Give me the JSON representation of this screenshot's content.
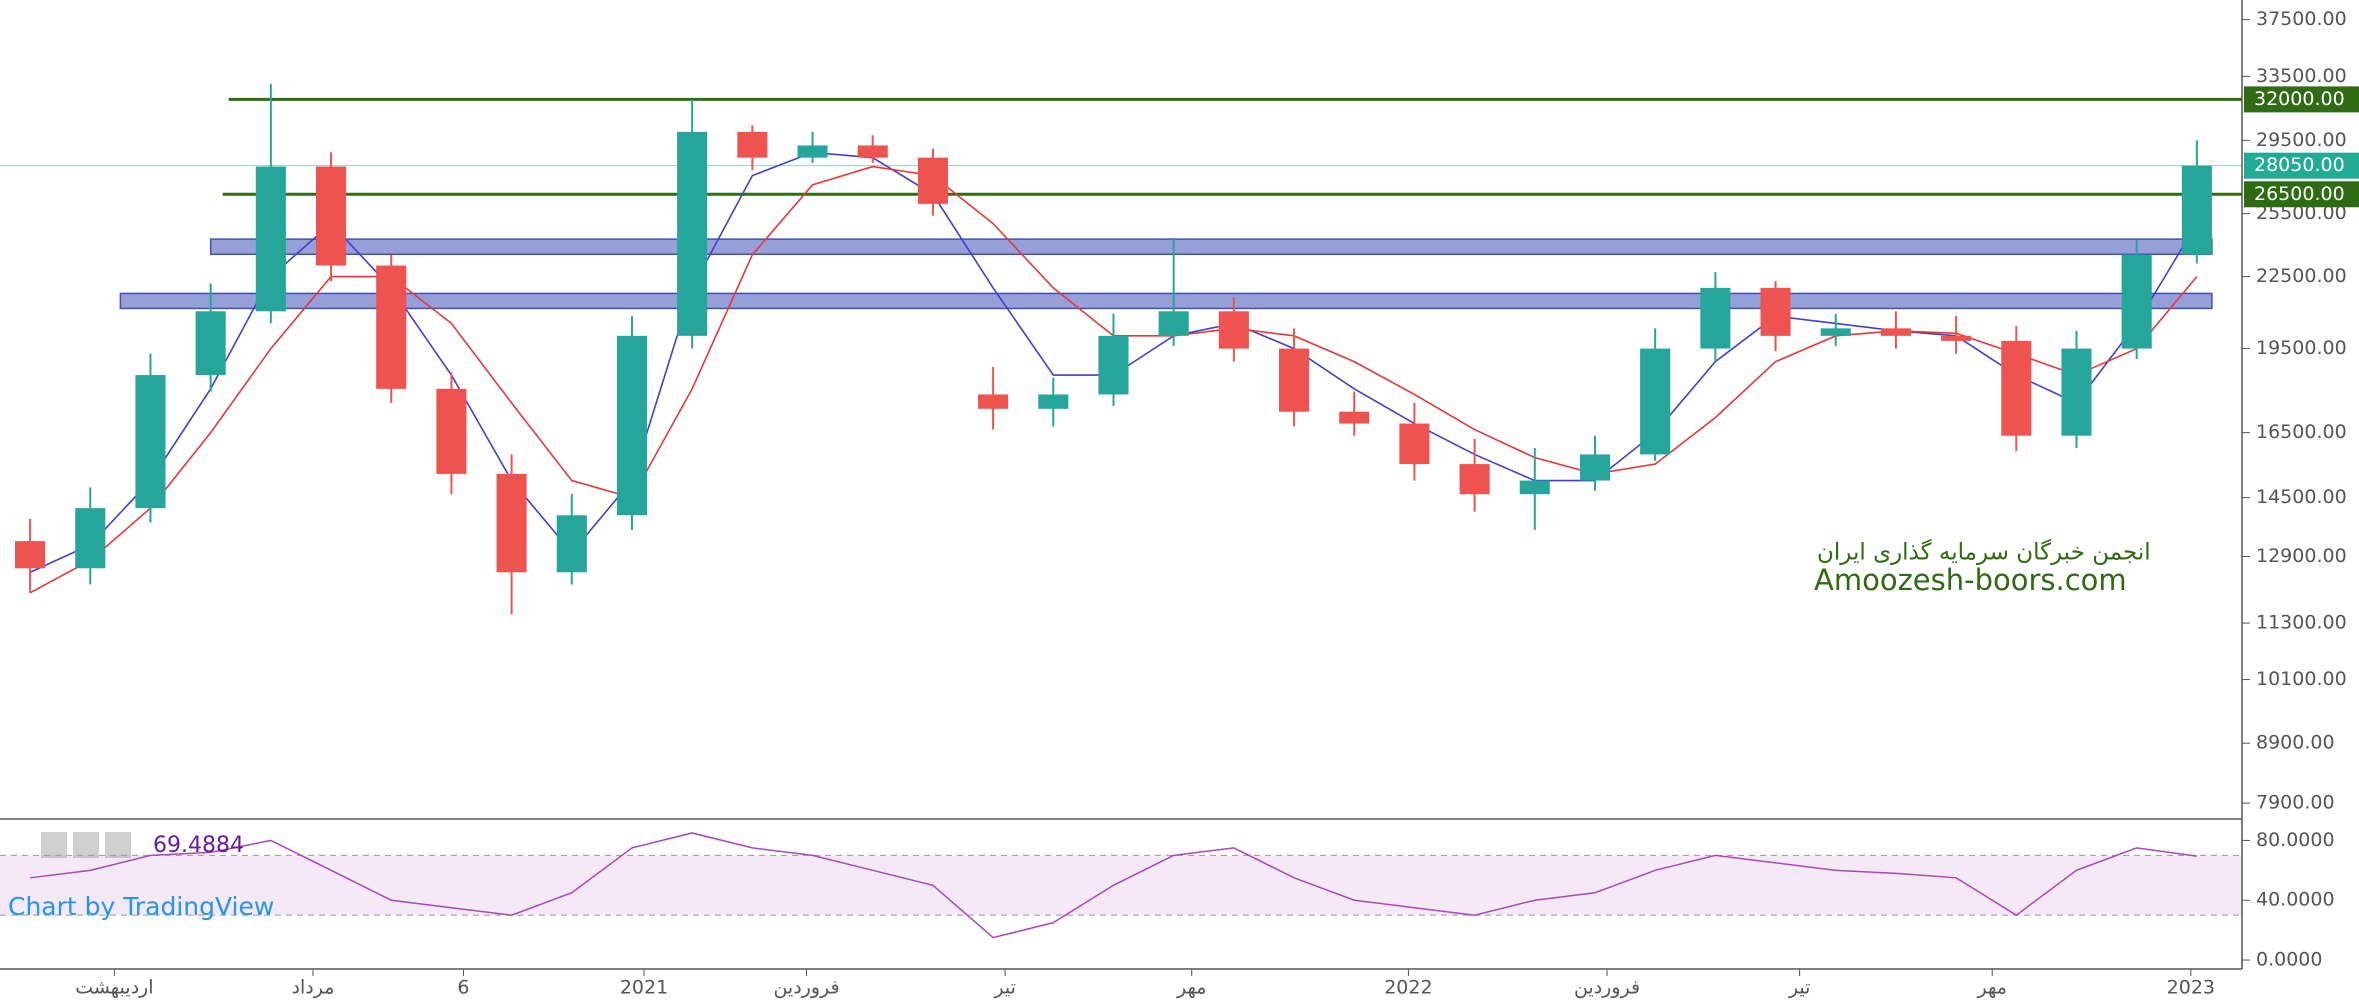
{
  "chart_data": [
    {
      "type": "candlestick",
      "open": [
        13300,
        12600,
        14200,
        18500,
        21000,
        28000,
        23000,
        18000,
        15200,
        12500,
        14000,
        20000,
        30000,
        28500,
        29200,
        28500,
        17800,
        17300,
        17800,
        20000,
        21000,
        19500,
        17200,
        16800,
        15500,
        14600,
        15000,
        15800,
        19500,
        22000,
        20000,
        20300,
        20000,
        19800,
        16400,
        19500,
        23500
      ],
      "high": [
        13900,
        14800,
        19300,
        22200,
        33000,
        28800,
        23500,
        18600,
        15800,
        14600,
        20800,
        32000,
        30400,
        30000,
        29800,
        29000,
        18800,
        18400,
        20900,
        24300,
        21600,
        20300,
        17900,
        17500,
        16300,
        16000,
        16400,
        20300,
        22700,
        22300,
        20900,
        21000,
        20800,
        20400,
        20200,
        24200,
        29500
      ],
      "low": [
        12000,
        12200,
        13800,
        17900,
        20500,
        22300,
        17500,
        14600,
        11500,
        12200,
        13600,
        19500,
        27800,
        28200,
        28200,
        25400,
        16600,
        16700,
        17400,
        19600,
        19000,
        16700,
        16400,
        15000,
        14100,
        13600,
        14700,
        15600,
        19000,
        19400,
        19600,
        19500,
        19300,
        15900,
        16000,
        19100,
        23100
      ],
      "close": [
        12600,
        14200,
        18500,
        21000,
        28000,
        23000,
        18000,
        15200,
        12500,
        14000,
        20000,
        30000,
        28500,
        29200,
        28500,
        26000,
        17300,
        17800,
        20000,
        21000,
        19500,
        17200,
        16800,
        15500,
        14600,
        15000,
        15800,
        19500,
        22000,
        20000,
        20300,
        20000,
        19800,
        16400,
        19500,
        23500,
        28050
      ],
      "up_color": "#26a69a",
      "down_color": "#ef5350",
      "lines": [
        {
          "color": "#3f3fd8",
          "values": [
            12500,
            13200,
            15000,
            18000,
            22500,
            25000,
            22000,
            18500,
            15000,
            13000,
            15000,
            22000,
            27500,
            28800,
            28500,
            26500,
            22000,
            18500,
            18500,
            20000,
            20500,
            19500,
            18000,
            16800,
            15800,
            15000,
            15000,
            16500,
            19000,
            20800,
            20500,
            20200,
            20000,
            18500,
            17500,
            20500,
            25000
          ]
        },
        {
          "color": "#e53935",
          "values": [
            12000,
            12800,
            14200,
            16500,
            19500,
            22500,
            22500,
            20500,
            17500,
            15000,
            14500,
            18000,
            23500,
            27000,
            28000,
            27500,
            25000,
            22000,
            20000,
            20000,
            20300,
            20000,
            19000,
            17800,
            16600,
            15700,
            15200,
            15500,
            17000,
            19000,
            20000,
            20200,
            20100,
            19300,
            18500,
            19500,
            22500
          ]
        }
      ],
      "log_scale": true,
      "xlim": [
        -0.5,
        36.75
      ],
      "ylim": [
        7670,
        38990
      ],
      "yticks": [
        {
          "value": 37500,
          "label": "37500.00"
        },
        {
          "value": 33500,
          "label": "33500.00"
        },
        {
          "value": 29500,
          "label": "29500.00"
        },
        {
          "value": 25500,
          "label": "25500.00"
        },
        {
          "value": 22500,
          "label": "22500.00"
        },
        {
          "value": 19500,
          "label": "19500.00"
        },
        {
          "value": 16500,
          "label": "16500.00"
        },
        {
          "value": 14500,
          "label": "14500.00"
        },
        {
          "value": 12900,
          "label": "12900.00"
        },
        {
          "value": 11300,
          "label": "11300.00"
        },
        {
          "value": 10100,
          "label": "10100.00"
        },
        {
          "value": 8900,
          "label": "8900.00"
        },
        {
          "value": 7900,
          "label": "7900.00"
        }
      ],
      "xticks": [
        {
          "value": 1.4,
          "label": "اردیبهشت"
        },
        {
          "value": 4.7,
          "label": "مرداد"
        },
        {
          "value": 7.2,
          "label": "6"
        },
        {
          "value": 10.2,
          "label": "2021"
        },
        {
          "value": 12.9,
          "label": "فروردین"
        },
        {
          "value": 16.2,
          "label": "تیر"
        },
        {
          "value": 19.3,
          "label": "مهر"
        },
        {
          "value": 22.9,
          "label": "2022"
        },
        {
          "value": 26.2,
          "label": "فروردین"
        },
        {
          "value": 29.4,
          "label": "تیر"
        },
        {
          "value": 32.6,
          "label": "مهر"
        },
        {
          "value": 35.9,
          "label": "2023"
        }
      ],
      "levels": [
        {
          "value": 32000,
          "label": "32000.00",
          "color": "#2e6b12",
          "x_start": 3.3
        },
        {
          "value": 28050,
          "label": "28050.00",
          "color": "#22ab94",
          "x_start": -0.5
        },
        {
          "value": 26500,
          "label": "26500.00",
          "color": "#2e6b12",
          "x_start": 3.2
        }
      ],
      "zones": [
        {
          "from": 23520,
          "to": 24240,
          "x_start": 3.0,
          "x_end": 36.25
        },
        {
          "from": 21120,
          "to": 21760,
          "x_start": 1.5,
          "x_end": 36.25
        }
      ],
      "annotations": [
        "انجمن خبرگان سرمایه گذاری ایران",
        "Amoozesh-boors.com"
      ]
    },
    {
      "type": "line",
      "values": [
        55,
        60,
        70,
        72,
        80,
        60,
        40,
        35,
        30,
        45,
        75,
        85,
        75,
        70,
        60,
        50,
        15,
        25,
        50,
        70,
        75,
        55,
        40,
        35,
        30,
        40,
        45,
        60,
        70,
        65,
        60,
        58,
        55,
        30,
        60,
        75,
        69.4884
      ],
      "color": "#ab47bc",
      "band": [
        30,
        70
      ],
      "ylim": [
        -6,
        93
      ],
      "yticks": [
        {
          "value": 80,
          "label": "80.0000"
        },
        {
          "value": 40,
          "label": "40.0000"
        },
        {
          "value": 0,
          "label": "0.0000"
        }
      ],
      "credit": "Chart by TradingView"
    }
  ]
}
